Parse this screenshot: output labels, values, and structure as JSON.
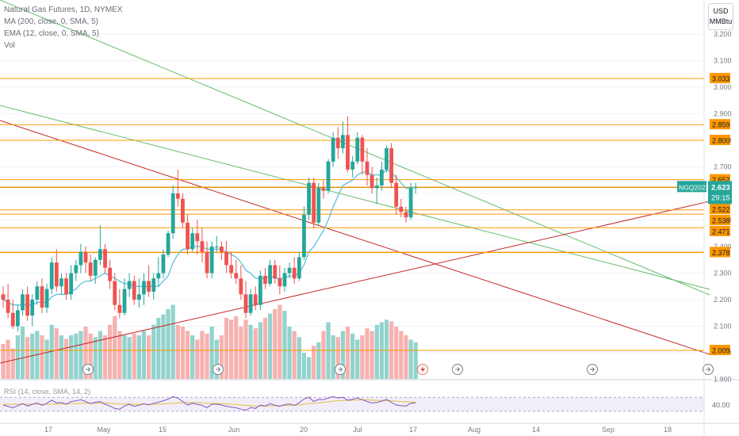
{
  "legend": {
    "symbol_line": "Natural Gas Futures, 1D, NYMEX",
    "ma_line": "MA (200, close, 0, SMA, 5)",
    "ema_line": "EMA (12, close, 0, SMA, 5)",
    "vol_line": "Vol"
  },
  "price_scale": {
    "unit_line1": "USD",
    "unit_line2": "MMBtu"
  },
  "current_price": {
    "symbol": "NGQ2023",
    "price": "2.623",
    "countdown": "29:15"
  },
  "rsi": {
    "legend": "RSI (14, close, SMA, 14, 2)",
    "level": "40.00"
  },
  "colors": {
    "up": "#26a69a",
    "down": "#ef5350",
    "level_line": "#ff9800",
    "ema": "#5bc0de",
    "trend_green": "#66bb6a",
    "trend_red": "#c62828",
    "rsi_line": "#7e57c2",
    "rsi_ma": "#e0c040"
  },
  "chart_data": {
    "type": "candlestick",
    "title": "Natural Gas Futures, 1D, NYMEX",
    "y_axis": {
      "ticks": [
        "1.900",
        "2.000",
        "2.100",
        "2.200",
        "2.300",
        "2.400",
        "2.500",
        "2.600",
        "2.700",
        "2.800",
        "2.900",
        "3.000",
        "3.100",
        "3.200"
      ],
      "range": [
        1.9,
        3.22
      ]
    },
    "x_axis": {
      "ticks": [
        "17",
        "May",
        "15",
        "Jun",
        "20",
        "Jul",
        "17",
        "Aug",
        "14",
        "Sep",
        "18"
      ]
    },
    "horizontal_levels": [
      {
        "value": 3.033,
        "label": "3.033"
      },
      {
        "value": 2.859,
        "label": "2.859"
      },
      {
        "value": 2.8,
        "label": "2.800"
      },
      {
        "value": 2.652,
        "label": "2.652"
      },
      {
        "value": 2.522,
        "label": "2.522"
      },
      {
        "value": 2.538,
        "label": "2.538"
      },
      {
        "value": 2.471,
        "label": "2.471"
      },
      {
        "value": 2.378,
        "label": "2.378"
      },
      {
        "value": 2.009,
        "label": "2.009"
      }
    ],
    "candles": [
      {
        "o": 2.22,
        "h": 2.25,
        "l": 2.17,
        "c": 2.2
      },
      {
        "o": 2.2,
        "h": 2.26,
        "l": 2.13,
        "c": 2.15
      },
      {
        "o": 2.15,
        "h": 2.2,
        "l": 2.09,
        "c": 2.1
      },
      {
        "o": 2.1,
        "h": 2.18,
        "l": 2.08,
        "c": 2.16
      },
      {
        "o": 2.16,
        "h": 2.24,
        "l": 2.14,
        "c": 2.22
      },
      {
        "o": 2.22,
        "h": 2.25,
        "l": 2.12,
        "c": 2.14
      },
      {
        "o": 2.14,
        "h": 2.22,
        "l": 2.1,
        "c": 2.2
      },
      {
        "o": 2.2,
        "h": 2.27,
        "l": 2.18,
        "c": 2.25
      },
      {
        "o": 2.25,
        "h": 2.28,
        "l": 2.15,
        "c": 2.17
      },
      {
        "o": 2.17,
        "h": 2.26,
        "l": 2.15,
        "c": 2.24
      },
      {
        "o": 2.24,
        "h": 2.36,
        "l": 2.22,
        "c": 2.34
      },
      {
        "o": 2.34,
        "h": 2.39,
        "l": 2.23,
        "c": 2.25
      },
      {
        "o": 2.25,
        "h": 2.3,
        "l": 2.22,
        "c": 2.28
      },
      {
        "o": 2.28,
        "h": 2.3,
        "l": 2.2,
        "c": 2.22
      },
      {
        "o": 2.22,
        "h": 2.33,
        "l": 2.2,
        "c": 2.3
      },
      {
        "o": 2.3,
        "h": 2.35,
        "l": 2.27,
        "c": 2.33
      },
      {
        "o": 2.33,
        "h": 2.41,
        "l": 2.3,
        "c": 2.38
      },
      {
        "o": 2.38,
        "h": 2.4,
        "l": 2.3,
        "c": 2.34
      },
      {
        "o": 2.34,
        "h": 2.37,
        "l": 2.27,
        "c": 2.29
      },
      {
        "o": 2.29,
        "h": 2.36,
        "l": 2.26,
        "c": 2.35
      },
      {
        "o": 2.35,
        "h": 2.48,
        "l": 2.33,
        "c": 2.39
      },
      {
        "o": 2.39,
        "h": 2.41,
        "l": 2.3,
        "c": 2.32
      },
      {
        "o": 2.32,
        "h": 2.35,
        "l": 2.24,
        "c": 2.27
      },
      {
        "o": 2.27,
        "h": 2.3,
        "l": 2.16,
        "c": 2.18
      },
      {
        "o": 2.18,
        "h": 2.24,
        "l": 2.13,
        "c": 2.15
      },
      {
        "o": 2.15,
        "h": 2.28,
        "l": 2.14,
        "c": 2.24
      },
      {
        "o": 2.24,
        "h": 2.3,
        "l": 2.21,
        "c": 2.27
      },
      {
        "o": 2.27,
        "h": 2.29,
        "l": 2.18,
        "c": 2.2
      },
      {
        "o": 2.2,
        "h": 2.28,
        "l": 2.17,
        "c": 2.22
      },
      {
        "o": 2.22,
        "h": 2.3,
        "l": 2.18,
        "c": 2.27
      },
      {
        "o": 2.27,
        "h": 2.33,
        "l": 2.21,
        "c": 2.23
      },
      {
        "o": 2.23,
        "h": 2.3,
        "l": 2.2,
        "c": 2.28
      },
      {
        "o": 2.28,
        "h": 2.36,
        "l": 2.25,
        "c": 2.3
      },
      {
        "o": 2.3,
        "h": 2.39,
        "l": 2.28,
        "c": 2.37
      },
      {
        "o": 2.37,
        "h": 2.46,
        "l": 2.36,
        "c": 2.45
      },
      {
        "o": 2.45,
        "h": 2.63,
        "l": 2.43,
        "c": 2.6
      },
      {
        "o": 2.6,
        "h": 2.69,
        "l": 2.55,
        "c": 2.58
      },
      {
        "o": 2.58,
        "h": 2.6,
        "l": 2.47,
        "c": 2.49
      },
      {
        "o": 2.49,
        "h": 2.52,
        "l": 2.37,
        "c": 2.39
      },
      {
        "o": 2.39,
        "h": 2.47,
        "l": 2.38,
        "c": 2.45
      },
      {
        "o": 2.45,
        "h": 2.5,
        "l": 2.37,
        "c": 2.42
      },
      {
        "o": 2.42,
        "h": 2.47,
        "l": 2.34,
        "c": 2.38
      },
      {
        "o": 2.38,
        "h": 2.42,
        "l": 2.28,
        "c": 2.3
      },
      {
        "o": 2.3,
        "h": 2.42,
        "l": 2.28,
        "c": 2.4
      },
      {
        "o": 2.4,
        "h": 2.44,
        "l": 2.38,
        "c": 2.4
      },
      {
        "o": 2.4,
        "h": 2.42,
        "l": 2.35,
        "c": 2.38
      },
      {
        "o": 2.38,
        "h": 2.42,
        "l": 2.3,
        "c": 2.33
      },
      {
        "o": 2.33,
        "h": 2.38,
        "l": 2.28,
        "c": 2.3
      },
      {
        "o": 2.3,
        "h": 2.35,
        "l": 2.26,
        "c": 2.28
      },
      {
        "o": 2.28,
        "h": 2.33,
        "l": 2.2,
        "c": 2.22
      },
      {
        "o": 2.22,
        "h": 2.27,
        "l": 2.13,
        "c": 2.15
      },
      {
        "o": 2.15,
        "h": 2.24,
        "l": 2.14,
        "c": 2.22
      },
      {
        "o": 2.22,
        "h": 2.25,
        "l": 2.16,
        "c": 2.18
      },
      {
        "o": 2.18,
        "h": 2.31,
        "l": 2.16,
        "c": 2.29
      },
      {
        "o": 2.29,
        "h": 2.32,
        "l": 2.24,
        "c": 2.26
      },
      {
        "o": 2.26,
        "h": 2.35,
        "l": 2.25,
        "c": 2.33
      },
      {
        "o": 2.33,
        "h": 2.35,
        "l": 2.26,
        "c": 2.28
      },
      {
        "o": 2.28,
        "h": 2.33,
        "l": 2.22,
        "c": 2.25
      },
      {
        "o": 2.25,
        "h": 2.32,
        "l": 2.23,
        "c": 2.3
      },
      {
        "o": 2.3,
        "h": 2.34,
        "l": 2.28,
        "c": 2.32
      },
      {
        "o": 2.32,
        "h": 2.36,
        "l": 2.26,
        "c": 2.28
      },
      {
        "o": 2.28,
        "h": 2.38,
        "l": 2.27,
        "c": 2.36
      },
      {
        "o": 2.36,
        "h": 2.55,
        "l": 2.35,
        "c": 2.52
      },
      {
        "o": 2.52,
        "h": 2.66,
        "l": 2.5,
        "c": 2.64
      },
      {
        "o": 2.64,
        "h": 2.66,
        "l": 2.47,
        "c": 2.49
      },
      {
        "o": 2.49,
        "h": 2.64,
        "l": 2.48,
        "c": 2.62
      },
      {
        "o": 2.62,
        "h": 2.65,
        "l": 2.58,
        "c": 2.61
      },
      {
        "o": 2.61,
        "h": 2.73,
        "l": 2.6,
        "c": 2.72
      },
      {
        "o": 2.72,
        "h": 2.83,
        "l": 2.7,
        "c": 2.81
      },
      {
        "o": 2.81,
        "h": 2.85,
        "l": 2.73,
        "c": 2.77
      },
      {
        "o": 2.77,
        "h": 2.87,
        "l": 2.75,
        "c": 2.82
      },
      {
        "o": 2.82,
        "h": 2.89,
        "l": 2.68,
        "c": 2.69
      },
      {
        "o": 2.69,
        "h": 2.74,
        "l": 2.66,
        "c": 2.72
      },
      {
        "o": 2.72,
        "h": 2.83,
        "l": 2.71,
        "c": 2.81
      },
      {
        "o": 2.81,
        "h": 2.82,
        "l": 2.67,
        "c": 2.72
      },
      {
        "o": 2.72,
        "h": 2.77,
        "l": 2.63,
        "c": 2.67
      },
      {
        "o": 2.67,
        "h": 2.7,
        "l": 2.6,
        "c": 2.62
      },
      {
        "o": 2.62,
        "h": 2.66,
        "l": 2.56,
        "c": 2.63
      },
      {
        "o": 2.63,
        "h": 2.72,
        "l": 2.61,
        "c": 2.69
      },
      {
        "o": 2.69,
        "h": 2.78,
        "l": 2.68,
        "c": 2.77
      },
      {
        "o": 2.77,
        "h": 2.79,
        "l": 2.62,
        "c": 2.64
      },
      {
        "o": 2.64,
        "h": 2.67,
        "l": 2.52,
        "c": 2.55
      },
      {
        "o": 2.55,
        "h": 2.58,
        "l": 2.51,
        "c": 2.53
      },
      {
        "o": 2.53,
        "h": 2.55,
        "l": 2.49,
        "c": 2.51
      },
      {
        "o": 2.51,
        "h": 2.64,
        "l": 2.5,
        "c": 2.62
      },
      {
        "o": 2.62,
        "h": 2.64,
        "l": 2.6,
        "c": 2.623
      }
    ],
    "volume_relative": [
      0.4,
      0.45,
      0.35,
      0.5,
      0.6,
      0.48,
      0.52,
      0.55,
      0.5,
      0.45,
      0.62,
      0.58,
      0.5,
      0.46,
      0.5,
      0.52,
      0.55,
      0.6,
      0.52,
      0.48,
      0.55,
      0.5,
      0.62,
      0.72,
      0.55,
      0.5,
      0.48,
      0.52,
      0.5,
      0.55,
      0.5,
      0.62,
      0.7,
      0.74,
      0.8,
      0.85,
      0.62,
      0.6,
      0.55,
      0.5,
      0.45,
      0.55,
      0.52,
      0.6,
      0.45,
      0.5,
      0.7,
      0.68,
      0.72,
      0.6,
      0.68,
      0.62,
      0.58,
      0.65,
      0.7,
      0.75,
      0.8,
      0.85,
      0.78,
      0.6,
      0.55,
      0.48,
      0.3,
      0.25,
      0.38,
      0.42,
      0.55,
      0.65,
      0.5,
      0.48,
      0.55,
      0.6,
      0.52,
      0.45,
      0.5,
      0.58,
      0.55,
      0.62,
      0.65,
      0.68,
      0.66,
      0.6,
      0.55,
      0.5,
      0.45,
      0.42
    ],
    "ema_12": [
      2.2,
      2.19,
      2.18,
      2.18,
      2.18,
      2.18,
      2.18,
      2.19,
      2.19,
      2.19,
      2.21,
      2.22,
      2.22,
      2.22,
      2.23,
      2.24,
      2.26,
      2.27,
      2.27,
      2.28,
      2.29,
      2.3,
      2.29,
      2.28,
      2.27,
      2.26,
      2.26,
      2.25,
      2.25,
      2.25,
      2.25,
      2.25,
      2.25,
      2.27,
      2.29,
      2.34,
      2.37,
      2.39,
      2.39,
      2.4,
      2.4,
      2.4,
      2.39,
      2.39,
      2.39,
      2.39,
      2.38,
      2.37,
      2.36,
      2.34,
      2.31,
      2.3,
      2.28,
      2.28,
      2.28,
      2.29,
      2.28,
      2.28,
      2.28,
      2.29,
      2.29,
      2.3,
      2.33,
      2.38,
      2.4,
      2.43,
      2.46,
      2.5,
      2.55,
      2.59,
      2.63,
      2.64,
      2.65,
      2.67,
      2.68,
      2.68,
      2.67,
      2.67,
      2.67,
      2.69,
      2.68,
      2.66,
      2.64,
      2.62,
      2.62,
      2.623
    ],
    "rsi": [
      48,
      44,
      40,
      46,
      52,
      45,
      50,
      54,
      47,
      53,
      62,
      54,
      55,
      50,
      58,
      60,
      63,
      58,
      52,
      56,
      58,
      50,
      45,
      38,
      36,
      45,
      50,
      44,
      47,
      52,
      48,
      53,
      56,
      60,
      65,
      72,
      68,
      58,
      48,
      53,
      50,
      47,
      40,
      50,
      50,
      48,
      44,
      42,
      40,
      36,
      33,
      41,
      38,
      48,
      45,
      52,
      47,
      44,
      49,
      51,
      47,
      54,
      65,
      70,
      58,
      64,
      63,
      68,
      72,
      68,
      70,
      62,
      64,
      68,
      63,
      58,
      54,
      55,
      59,
      64,
      55,
      48,
      46,
      45,
      53,
      54
    ],
    "rsi_ma": [
      50,
      50,
      50,
      50,
      50,
      50,
      50,
      50,
      50,
      50,
      50,
      51,
      51,
      51,
      52,
      52,
      53,
      53,
      53,
      53,
      54,
      54,
      53,
      52,
      51,
      51,
      51,
      50,
      50,
      50,
      50,
      50,
      50,
      51,
      52,
      53,
      54,
      55,
      55,
      55,
      55,
      54,
      53,
      53,
      52,
      52,
      51,
      50,
      49,
      48,
      47,
      46,
      45,
      45,
      45,
      46,
      46,
      46,
      46,
      47,
      47,
      48,
      50,
      52,
      53,
      54,
      56,
      57,
      59,
      60,
      61,
      61,
      62,
      62,
      63,
      63,
      62,
      61,
      61,
      61,
      60,
      59,
      58,
      57,
      56,
      56
    ]
  }
}
